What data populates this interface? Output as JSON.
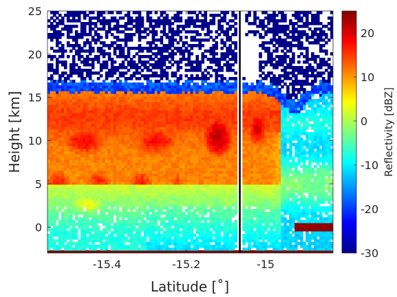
{
  "chart_data": {
    "type": "heatmap",
    "title": "",
    "xlabel": "Latitude [˚]",
    "ylabel": "Height [km]",
    "xlim": [
      -15.55,
      -14.83
    ],
    "ylim": [
      -3,
      25
    ],
    "x_ticks": [
      -15.4,
      -15.2,
      -15.0
    ],
    "x_tick_labels": [
      "-15.4",
      "-15.2",
      "-15"
    ],
    "y_ticks": [
      0,
      5,
      10,
      15,
      20,
      25
    ],
    "y_tick_labels": [
      "0",
      "5",
      "10",
      "15",
      "20",
      "25"
    ],
    "colorbar": {
      "label": "Reflectivity [dBZ]",
      "range": [
        -30,
        25
      ],
      "ticks": [
        -30,
        -20,
        -10,
        0,
        10,
        20
      ],
      "tick_labels": [
        "-30",
        "-20",
        "-10",
        "0",
        "10",
        "20"
      ],
      "colormap": "jet"
    },
    "vertical_line_latitude": -15.065,
    "features": [
      {
        "description": "cloud anvil",
        "lat_range": [
          -15.55,
          -14.93
        ],
        "height_range": [
          10,
          16.5
        ],
        "reflectivity_dbz": [
          5,
          22
        ]
      },
      {
        "description": "strong core",
        "lat_range": [
          -15.22,
          -14.98
        ],
        "height_range": [
          4,
          15
        ],
        "reflectivity_dbz": [
          15,
          24
        ]
      },
      {
        "description": "low-level bands",
        "lat_range": [
          -15.55,
          -15.25
        ],
        "height_range": [
          3,
          10
        ],
        "reflectivity_dbz": [
          10,
          20
        ]
      },
      {
        "description": "surface strip",
        "lat_range": [
          -15.55,
          -14.83
        ],
        "height_range": [
          -3,
          -2.6
        ],
        "reflectivity_dbz": [
          25,
          25
        ]
      },
      {
        "description": "clutter above 17 km",
        "lat_range": [
          -15.55,
          -14.83
        ],
        "height_range": [
          17,
          25
        ],
        "reflectivity_dbz": [
          -30,
          -28
        ]
      }
    ]
  }
}
